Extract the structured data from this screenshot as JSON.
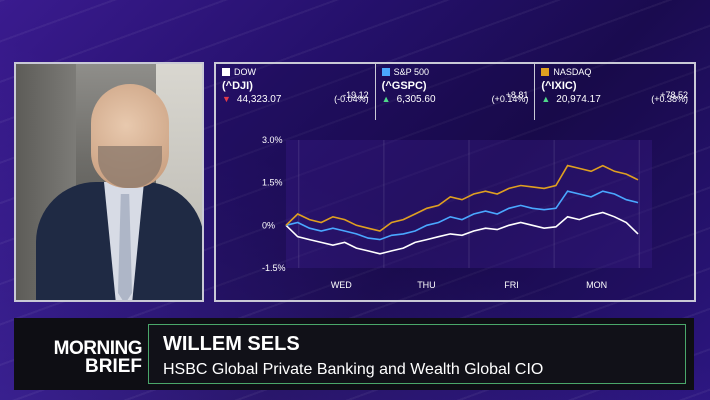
{
  "colors": {
    "dow": "#ffffff",
    "sp500": "#4aa8ff",
    "nasdaq": "#e0a020",
    "up": "#4fd98a",
    "down": "#e23a4a"
  },
  "tickers": [
    {
      "name": "DOW",
      "symbol": "(^DJI)",
      "price": "44,323.07",
      "change": "-19.12",
      "pct": "(-0.04%)",
      "direction": "down"
    },
    {
      "name": "S&P 500",
      "symbol": "(^GSPC)",
      "price": "6,305.60",
      "change": "+8.81",
      "pct": "(+0.14%)",
      "direction": "up"
    },
    {
      "name": "NASDAQ",
      "symbol": "(^IXIC)",
      "price": "20,974.17",
      "change": "+78.52",
      "pct": "(+0.38%)",
      "direction": "up"
    }
  ],
  "chart_data": {
    "type": "line",
    "y_ticks": [
      "3.0%",
      "1.5%",
      "0%",
      "-1.5%"
    ],
    "x_ticks": [
      "WED",
      "THU",
      "FRI",
      "MON"
    ],
    "ylim": [
      -1.5,
      3.0
    ],
    "series": [
      {
        "name": "DOW",
        "values": [
          0.0,
          -0.4,
          -0.5,
          -0.6,
          -0.7,
          -0.6,
          -0.8,
          -0.9,
          -1.0,
          -0.9,
          -0.8,
          -0.6,
          -0.5,
          -0.4,
          -0.3,
          -0.35,
          -0.2,
          -0.1,
          -0.15,
          0.0,
          0.1,
          0.0,
          -0.1,
          -0.05,
          0.3,
          0.2,
          0.35,
          0.45,
          0.3,
          0.1,
          -0.3
        ]
      },
      {
        "name": "S&P 500",
        "values": [
          0.0,
          0.1,
          -0.1,
          -0.2,
          -0.1,
          -0.2,
          -0.3,
          -0.45,
          -0.5,
          -0.35,
          -0.3,
          -0.2,
          0.0,
          0.1,
          0.3,
          0.2,
          0.4,
          0.5,
          0.4,
          0.6,
          0.7,
          0.6,
          0.55,
          0.6,
          1.2,
          1.1,
          1.0,
          1.2,
          1.1,
          0.9,
          0.8
        ]
      },
      {
        "name": "NASDAQ",
        "values": [
          0.0,
          0.4,
          0.2,
          0.1,
          0.3,
          0.2,
          0.0,
          -0.1,
          -0.2,
          0.1,
          0.2,
          0.4,
          0.6,
          0.7,
          1.0,
          0.9,
          1.1,
          1.2,
          1.1,
          1.3,
          1.4,
          1.35,
          1.3,
          1.4,
          2.1,
          2.0,
          1.9,
          2.1,
          1.9,
          1.8,
          1.6
        ]
      }
    ]
  },
  "lower_third": {
    "brand_line1": "MORNING",
    "brand_line2": "BRIEF",
    "name": "WILLEM SELS",
    "title": "HSBC Global Private Banking and Wealth Global CIO"
  }
}
